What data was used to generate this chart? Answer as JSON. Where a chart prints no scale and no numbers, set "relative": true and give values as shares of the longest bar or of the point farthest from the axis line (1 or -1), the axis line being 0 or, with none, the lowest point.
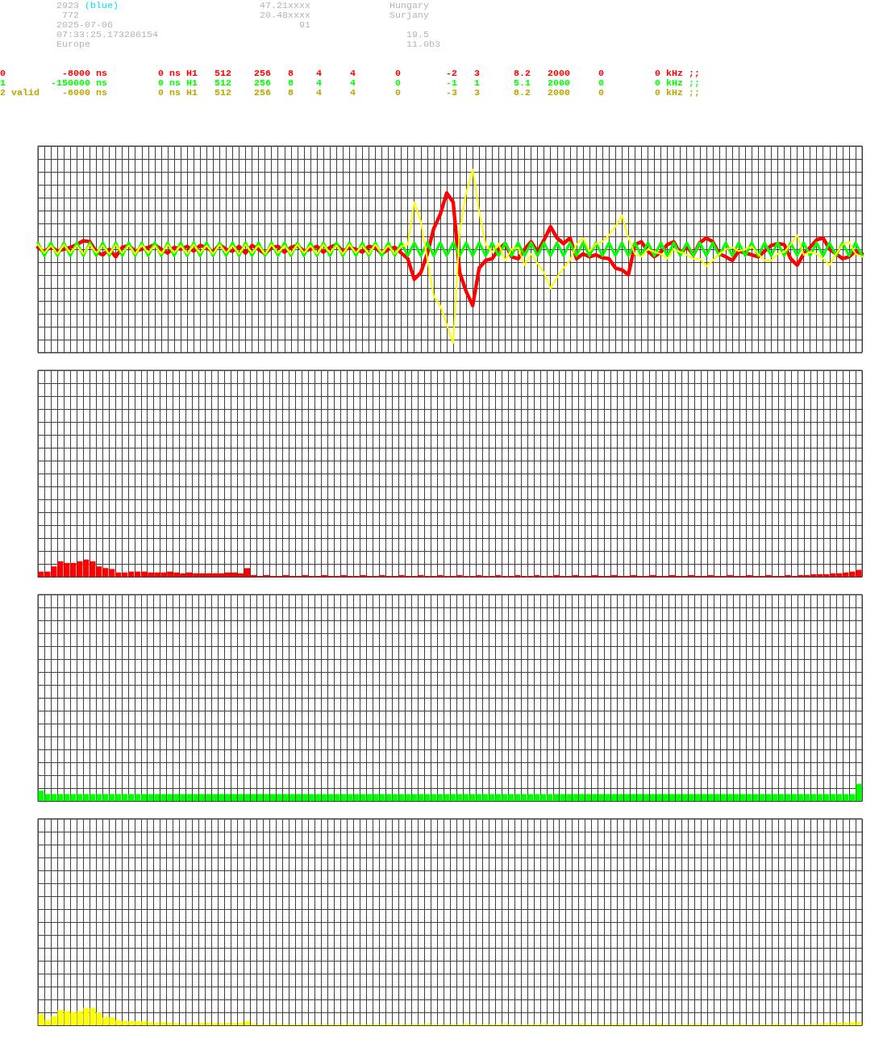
{
  "chart_data": [
    {
      "type": "other",
      "annotations": [
        "2923",
        "(blue)",
        "47.21xxxx",
        "Hungary",
        "772",
        "20.48xxxx",
        "Surjany",
        "2025-07-06",
        "91",
        "07:33:25.173286154",
        "19.5",
        "Europe",
        "11.0b3",
        "0",
        "-8000 ns",
        "0 ns",
        "H1",
        "512",
        "256",
        "8",
        "4",
        "4",
        "0",
        "-2",
        "3",
        "8.2",
        "2000",
        "0",
        "0 kHz ;;",
        "1",
        "-150000 ns",
        "0 ns",
        "H1",
        "512",
        "256",
        "8",
        "4",
        "4",
        "0",
        "-1",
        "1",
        "5.1",
        "2000",
        "0",
        "0 kHz ;;",
        "2 valid",
        "-6000 ns",
        "0 ns",
        "H1",
        "512",
        "256",
        "8",
        "4",
        "4",
        "0",
        "-3",
        "3",
        "8.2",
        "2000",
        "0",
        "0 kHz ;;"
      ],
      "colors": [
        "#b4b4b4",
        "#00e5ff",
        "#b4b4b4",
        "#b4b4b4",
        "#b4b4b4",
        "#b4b4b4",
        "#b4b4b4",
        "#b4b4b4",
        "#b4b4b4",
        "#b4b4b4",
        "#b4b4b4",
        "#b4b4b4",
        "#b4b4b4",
        "#ff0000",
        "#ff0000",
        "#ff0000",
        "#ff0000",
        "#ff0000",
        "#ff0000",
        "#ff0000",
        "#ff0000",
        "#ff0000",
        "#ff0000",
        "#ff0000",
        "#ff0000",
        "#ff0000",
        "#ff0000",
        "#ff0000",
        "#ff0000",
        "#00ff00",
        "#00ff00",
        "#00ff00",
        "#00ff00",
        "#00ff00",
        "#00ff00",
        "#00ff00",
        "#00ff00",
        "#00ff00",
        "#00ff00",
        "#00ff00",
        "#00ff00",
        "#00ff00",
        "#00ff00",
        "#00ff00",
        "#00ff00",
        "#b8a800",
        "#b8a800",
        "#b8a800",
        "#b8a800",
        "#b8a800",
        "#b8a800",
        "#b8a800",
        "#b8a800",
        "#b8a800",
        "#b8a800",
        "#b8a800",
        "#b8a800",
        "#b8a800",
        "#b8a800",
        "#b8a800",
        "#b8a800"
      ]
    },
    {
      "type": "line",
      "relative": true,
      "grid": true,
      "tick_labels": false,
      "categories": [
        null,
        null,
        null,
        null,
        null,
        null,
        null,
        null,
        null,
        null,
        null,
        null,
        null,
        null,
        null,
        null,
        null,
        null,
        null,
        null,
        null,
        null,
        null,
        null,
        null,
        null,
        null,
        null,
        null,
        null,
        null,
        null,
        null,
        null,
        null,
        null,
        null,
        null,
        null,
        null,
        null,
        null,
        null,
        null,
        null,
        null,
        null,
        null,
        null,
        null,
        null,
        null,
        null,
        null,
        null,
        null,
        null,
        null,
        null,
        null,
        null,
        null,
        null,
        null,
        null,
        null,
        null,
        null,
        null,
        null,
        null,
        null,
        null,
        null,
        null,
        null,
        null,
        null,
        null,
        null,
        null,
        null,
        null,
        null,
        null,
        null,
        null,
        null,
        null,
        null,
        null,
        null,
        null,
        null,
        null,
        null,
        null,
        null,
        null,
        null,
        null,
        null,
        null,
        null,
        null,
        null,
        null,
        null,
        null,
        null,
        null,
        null,
        null,
        null,
        null,
        null,
        null,
        null,
        null,
        null,
        null,
        null,
        null,
        null,
        null,
        null,
        null,
        null
      ],
      "series": [
        {
          "color": "#ff0000",
          "values": [
            0.02,
            -0.03,
            0.03,
            -0.02,
            0.0,
            0.02,
            0.05,
            0.09,
            0.08,
            -0.03,
            -0.06,
            0.0,
            -0.08,
            0.02,
            0.04,
            -0.02,
            0.0,
            0.02,
            0.05,
            0.0,
            -0.04,
            0.02,
            0.0,
            0.03,
            -0.02,
            0.04,
            0.02,
            -0.03,
            0.05,
            0.0,
            -0.02,
            0.03,
            -0.04,
            0.04,
            0.0,
            -0.05,
            0.02,
            0.03,
            -0.03,
            0.02,
            0.04,
            -0.02,
            0.0,
            0.03,
            -0.03,
            0.02,
            0.05,
            -0.02,
            0.02,
            0.0,
            -0.03,
            0.03,
            0.02,
            -0.05,
            0.0,
            0.02,
            -0.04,
            -0.1,
            -0.32,
            -0.25,
            -0.05,
            0.22,
            0.37,
            0.6,
            0.5,
            -0.25,
            -0.45,
            -0.6,
            -0.2,
            -0.12,
            -0.1,
            0.0,
            0.06,
            -0.08,
            -0.1,
            0.0,
            0.08,
            -0.03,
            0.1,
            0.24,
            0.12,
            0.06,
            0.12,
            -0.1,
            -0.05,
            -0.08,
            -0.06,
            -0.09,
            -0.1,
            -0.2,
            -0.22,
            -0.27,
            0.05,
            0.08,
            -0.02,
            -0.08,
            -0.03,
            0.05,
            0.08,
            -0.05,
            0.03,
            -0.06,
            0.07,
            0.12,
            0.08,
            -0.05,
            -0.08,
            -0.12,
            -0.02,
            -0.04,
            -0.06,
            -0.08,
            -0.02,
            0.04,
            0.06,
            0.05,
            -0.1,
            -0.17,
            -0.05,
            0.02,
            0.1,
            0.12,
            0.0,
            -0.05,
            -0.1,
            -0.08,
            -0.02,
            -0.05
          ]
        },
        {
          "color": "#00ff00",
          "values": [
            0.07,
            -0.07,
            0.07,
            -0.07,
            0.07,
            -0.07,
            0.07,
            -0.07,
            0.07,
            -0.07,
            0.07,
            -0.07,
            0.07,
            -0.07,
            0.07,
            -0.07,
            0.07,
            -0.07,
            0.07,
            -0.07,
            0.07,
            -0.07,
            0.07,
            -0.07,
            0.07,
            -0.07,
            0.07,
            -0.07,
            0.07,
            -0.07,
            0.07,
            -0.07,
            0.07,
            -0.07,
            0.07,
            -0.07,
            0.07,
            -0.07,
            0.07,
            -0.07,
            0.07,
            -0.07,
            0.07,
            -0.07,
            0.07,
            -0.07,
            0.07,
            -0.07,
            0.07,
            -0.07,
            0.07,
            -0.07,
            0.07,
            -0.07,
            0.07,
            -0.07,
            0.07,
            -0.07,
            0.07,
            -0.07,
            0.07,
            -0.07,
            0.07,
            -0.07,
            0.07,
            -0.07,
            0.07,
            -0.07,
            0.07,
            -0.07,
            0.07,
            -0.07,
            0.07,
            -0.07,
            0.07,
            -0.07,
            0.07,
            -0.07,
            0.07,
            -0.07,
            0.07,
            -0.07,
            0.07,
            -0.07,
            0.07,
            -0.07,
            0.07,
            -0.07,
            0.07,
            -0.07,
            0.07,
            -0.07,
            0.07,
            -0.07,
            0.07,
            -0.07,
            0.07,
            -0.07,
            0.07,
            -0.07,
            0.07,
            -0.07,
            0.07,
            -0.07,
            0.07,
            -0.07,
            0.07,
            -0.07,
            0.07,
            -0.07,
            0.07,
            -0.07,
            0.07,
            -0.07,
            0.07,
            -0.07,
            0.07,
            -0.07,
            0.07,
            -0.07,
            0.07,
            -0.07,
            0.07,
            -0.07,
            0.07,
            -0.07,
            0.07,
            -0.07
          ]
        },
        {
          "color": "#ffff00",
          "values": [
            0.05,
            -0.04,
            0.04,
            -0.05,
            0.05,
            -0.04,
            0.04,
            -0.05,
            0.05,
            -0.04,
            0.04,
            -0.05,
            0.05,
            -0.04,
            0.04,
            -0.05,
            0.05,
            -0.04,
            0.04,
            -0.05,
            0.05,
            -0.04,
            0.04,
            -0.05,
            0.05,
            -0.04,
            0.04,
            -0.05,
            0.05,
            -0.04,
            0.04,
            -0.05,
            0.05,
            -0.04,
            0.04,
            -0.05,
            0.05,
            -0.04,
            0.04,
            -0.05,
            0.05,
            -0.04,
            0.04,
            -0.05,
            0.05,
            -0.04,
            0.04,
            -0.05,
            0.05,
            -0.04,
            0.04,
            -0.05,
            0.05,
            -0.04,
            0.04,
            -0.05,
            0.03,
            0.05,
            0.5,
            0.3,
            -0.1,
            -0.5,
            -0.6,
            -0.8,
            -1.0,
            0.2,
            0.6,
            0.85,
            0.4,
            0.05,
            -0.03,
            0.06,
            -0.12,
            0.0,
            0.02,
            -0.17,
            -0.05,
            -0.15,
            -0.25,
            -0.42,
            -0.3,
            -0.2,
            -0.12,
            0.05,
            0.12,
            -0.02,
            0.06,
            0.08,
            0.15,
            0.24,
            0.36,
            0.12,
            -0.05,
            -0.08,
            0.0,
            -0.03,
            -0.05,
            -0.1,
            0.0,
            -0.03,
            -0.06,
            -0.1,
            -0.1,
            -0.18,
            -0.12,
            -0.05,
            0.0,
            0.02,
            -0.02,
            0.0,
            0.03,
            -0.05,
            -0.12,
            -0.12,
            -0.05,
            -0.03,
            0.05,
            0.15,
            -0.06,
            -0.03,
            -0.05,
            -0.1,
            -0.17,
            -0.05,
            0.05,
            0.08,
            -0.05,
            -0.08
          ]
        }
      ]
    },
    {
      "type": "bar",
      "relative": true,
      "grid": true,
      "tick_labels": false,
      "color": "#ff0000",
      "categories": [
        null,
        null,
        null,
        null,
        null,
        null,
        null,
        null,
        null,
        null,
        null,
        null,
        null,
        null,
        null,
        null,
        null,
        null,
        null,
        null,
        null,
        null,
        null,
        null,
        null,
        null,
        null,
        null,
        null,
        null,
        null,
        null,
        null,
        null,
        null,
        null,
        null,
        null,
        null,
        null,
        null,
        null,
        null,
        null,
        null,
        null,
        null,
        null,
        null,
        null,
        null,
        null,
        null,
        null,
        null,
        null,
        null,
        null,
        null,
        null,
        null,
        null,
        null,
        null,
        null,
        null,
        null,
        null,
        null,
        null,
        null,
        null,
        null,
        null,
        null,
        null,
        null,
        null,
        null,
        null,
        null,
        null,
        null,
        null,
        null,
        null,
        null,
        null,
        null,
        null,
        null,
        null,
        null,
        null,
        null,
        null,
        null,
        null,
        null,
        null,
        null,
        null,
        null,
        null,
        null,
        null,
        null,
        null,
        null,
        null,
        null,
        null,
        null,
        null,
        null,
        null,
        null,
        null,
        null,
        null,
        null,
        null,
        null,
        null,
        null,
        null,
        null,
        null
      ],
      "values": [
        0.3,
        0.3,
        0.6,
        0.9,
        0.8,
        0.8,
        0.9,
        1,
        0.9,
        0.6,
        0.5,
        0.45,
        0.25,
        0.25,
        0.3,
        0.3,
        0.3,
        0.25,
        0.25,
        0.25,
        0.3,
        0.25,
        0.2,
        0.25,
        0.2,
        0.2,
        0.2,
        0.2,
        0.2,
        0.25,
        0.25,
        0.2,
        0.5,
        0.1,
        0.05,
        0.1,
        0.05,
        0.05,
        0.1,
        0.05,
        0.05,
        0.1,
        0.05,
        0.05,
        0.1,
        0.05,
        0.05,
        0.1,
        0.05,
        0.05,
        0.1,
        0.05,
        0.05,
        0.1,
        0.05,
        0.05,
        0.1,
        0.05,
        0.05,
        0.1,
        0.05,
        0.05,
        0.1,
        0.05,
        0.05,
        0.1,
        0.05,
        0.05,
        0.1,
        0.05,
        0.05,
        0.1,
        0.05,
        0.05,
        0.1,
        0.05,
        0.05,
        0.1,
        0.05,
        0.05,
        0.1,
        0.05,
        0.05,
        0.1,
        0.05,
        0.05,
        0.1,
        0.05,
        0.05,
        0.1,
        0.05,
        0.05,
        0.1,
        0.05,
        0.05,
        0.1,
        0.05,
        0.05,
        0.1,
        0.05,
        0.05,
        0.1,
        0.05,
        0.05,
        0.1,
        0.05,
        0.05,
        0.1,
        0.05,
        0.05,
        0.1,
        0.05,
        0.05,
        0.1,
        0.05,
        0.05,
        0.1,
        0.05,
        0.1,
        0.1,
        0.15,
        0.15,
        0.15,
        0.2,
        0.2,
        0.25,
        0.3,
        0.4
      ]
    },
    {
      "type": "bar",
      "relative": true,
      "grid": true,
      "tick_labels": false,
      "color": "#00ff00",
      "categories": [
        null,
        null,
        null,
        null,
        null,
        null,
        null,
        null,
        null,
        null,
        null,
        null,
        null,
        null,
        null,
        null,
        null,
        null,
        null,
        null,
        null,
        null,
        null,
        null,
        null,
        null,
        null,
        null,
        null,
        null,
        null,
        null,
        null,
        null,
        null,
        null,
        null,
        null,
        null,
        null,
        null,
        null,
        null,
        null,
        null,
        null,
        null,
        null,
        null,
        null,
        null,
        null,
        null,
        null,
        null,
        null,
        null,
        null,
        null,
        null,
        null,
        null,
        null,
        null,
        null,
        null,
        null,
        null,
        null,
        null,
        null,
        null,
        null,
        null,
        null,
        null,
        null,
        null,
        null,
        null,
        null,
        null,
        null,
        null,
        null,
        null,
        null,
        null,
        null,
        null,
        null,
        null,
        null,
        null,
        null,
        null,
        null,
        null,
        null,
        null,
        null,
        null,
        null,
        null,
        null,
        null,
        null,
        null,
        null,
        null,
        null,
        null,
        null,
        null,
        null,
        null,
        null,
        null,
        null,
        null,
        null,
        null,
        null,
        null,
        null,
        null,
        null,
        null
      ],
      "values": [
        0.6,
        0.4,
        0.4,
        0.4,
        0.4,
        0.4,
        0.4,
        0.4,
        0.4,
        0.4,
        0.4,
        0.4,
        0.4,
        0.4,
        0.4,
        0.4,
        0.4,
        0.4,
        0.4,
        0.4,
        0.4,
        0.4,
        0.4,
        0.4,
        0.4,
        0.4,
        0.4,
        0.4,
        0.4,
        0.4,
        0.4,
        0.4,
        0.4,
        0.4,
        0.4,
        0.4,
        0.4,
        0.4,
        0.4,
        0.4,
        0.4,
        0.4,
        0.4,
        0.4,
        0.4,
        0.4,
        0.4,
        0.4,
        0.4,
        0.4,
        0.4,
        0.4,
        0.4,
        0.4,
        0.4,
        0.4,
        0.4,
        0.4,
        0.4,
        0.4,
        0.4,
        0.4,
        0.4,
        0.4,
        0.4,
        0.4,
        0.4,
        0.4,
        0.4,
        0.4,
        0.4,
        0.4,
        0.4,
        0.4,
        0.4,
        0.4,
        0.4,
        0.4,
        0.4,
        0.4,
        0.4,
        0.4,
        0.4,
        0.4,
        0.4,
        0.4,
        0.4,
        0.4,
        0.4,
        0.4,
        0.4,
        0.4,
        0.4,
        0.4,
        0.4,
        0.4,
        0.4,
        0.4,
        0.4,
        0.4,
        0.4,
        0.4,
        0.4,
        0.4,
        0.4,
        0.4,
        0.4,
        0.4,
        0.4,
        0.4,
        0.4,
        0.4,
        0.4,
        0.4,
        0.4,
        0.4,
        0.4,
        0.4,
        0.4,
        0.4,
        0.4,
        0.4,
        0.4,
        0.4,
        0.4,
        0.4,
        0.4,
        1
      ]
    },
    {
      "type": "bar",
      "relative": true,
      "grid": true,
      "tick_labels": false,
      "color": "#ffff00",
      "categories": [
        null,
        null,
        null,
        null,
        null,
        null,
        null,
        null,
        null,
        null,
        null,
        null,
        null,
        null,
        null,
        null,
        null,
        null,
        null,
        null,
        null,
        null,
        null,
        null,
        null,
        null,
        null,
        null,
        null,
        null,
        null,
        null,
        null,
        null,
        null,
        null,
        null,
        null,
        null,
        null,
        null,
        null,
        null,
        null,
        null,
        null,
        null,
        null,
        null,
        null,
        null,
        null,
        null,
        null,
        null,
        null,
        null,
        null,
        null,
        null,
        null,
        null,
        null,
        null,
        null,
        null,
        null,
        null,
        null,
        null,
        null,
        null,
        null,
        null,
        null,
        null,
        null,
        null,
        null,
        null,
        null,
        null,
        null,
        null,
        null,
        null,
        null,
        null,
        null,
        null,
        null,
        null,
        null,
        null,
        null,
        null,
        null,
        null,
        null,
        null,
        null,
        null,
        null,
        null,
        null,
        null,
        null,
        null,
        null,
        null,
        null,
        null,
        null,
        null,
        null,
        null,
        null,
        null,
        null,
        null,
        null,
        null,
        null,
        null,
        null,
        null,
        null,
        null
      ],
      "values": [
        0.65,
        0.3,
        0.53,
        0.88,
        0.82,
        0.76,
        0.82,
        1,
        1,
        0.76,
        0.47,
        0.47,
        0.29,
        0.24,
        0.24,
        0.24,
        0.24,
        0.18,
        0.15,
        0.18,
        0.15,
        0.12,
        0.09,
        0.12,
        0.12,
        0.15,
        0.15,
        0.12,
        0.12,
        0.15,
        0.12,
        0.15,
        0.24,
        0.09,
        0.06,
        0.06,
        0.09,
        0.06,
        0.06,
        0.06,
        0.06,
        0.06,
        0.09,
        0.06,
        0.06,
        0.06,
        0.06,
        0.06,
        0.09,
        0.06,
        0.06,
        0.06,
        0.06,
        0.06,
        0.09,
        0.06,
        0.06,
        0.06,
        0.06,
        0.06,
        0.09,
        0.06,
        0.06,
        0.06,
        0.06,
        0.06,
        0.09,
        0.06,
        0.06,
        0.06,
        0.06,
        0.06,
        0.09,
        0.06,
        0.06,
        0.06,
        0.06,
        0.06,
        0.09,
        0.06,
        0.06,
        0.06,
        0.06,
        0.06,
        0.09,
        0.06,
        0.06,
        0.06,
        0.06,
        0.06,
        0.09,
        0.06,
        0.06,
        0.06,
        0.06,
        0.06,
        0.09,
        0.06,
        0.06,
        0.06,
        0.06,
        0.06,
        0.09,
        0.06,
        0.06,
        0.06,
        0.06,
        0.06,
        0.09,
        0.06,
        0.06,
        0.06,
        0.06,
        0.06,
        0.09,
        0.06,
        0.06,
        0.06,
        0.06,
        0.06,
        0.09,
        0.09,
        0.12,
        0.12,
        0.15,
        0.15,
        0.18,
        0.18
      ]
    }
  ]
}
